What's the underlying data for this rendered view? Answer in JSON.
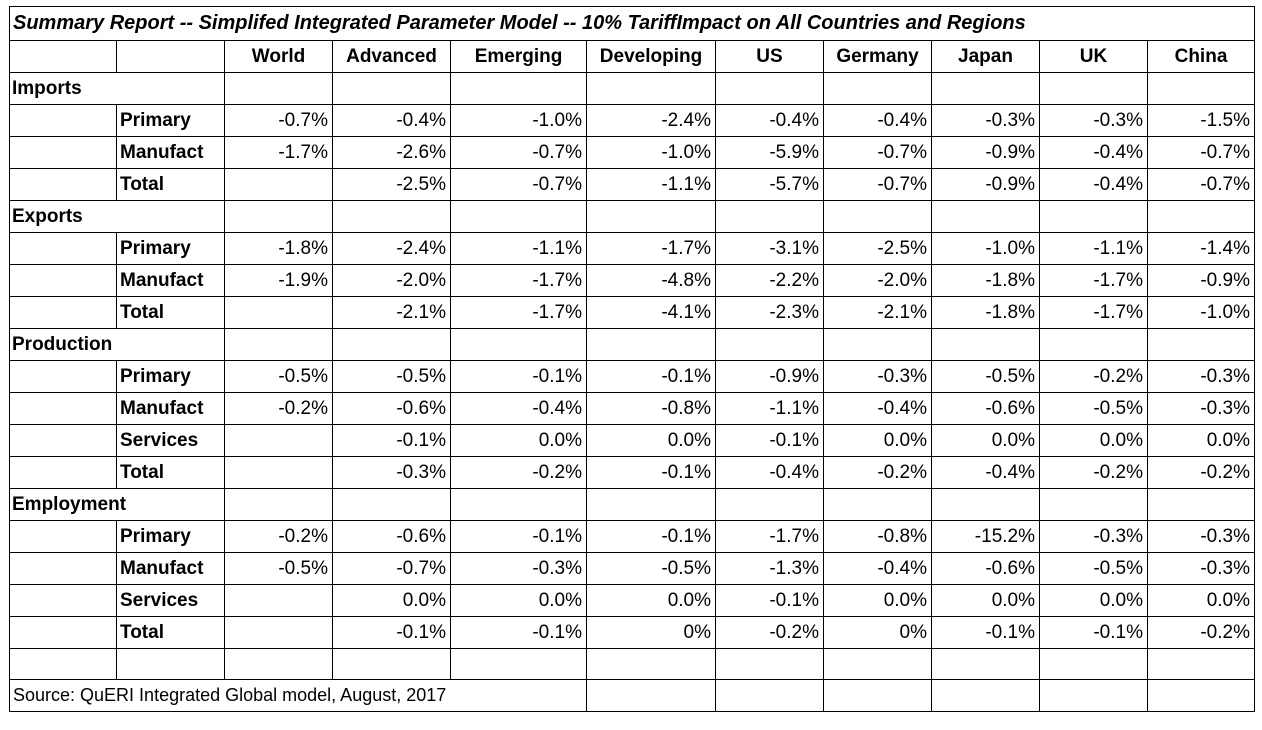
{
  "title": "Summary Report -- Simplifed Integrated Parameter Model -- 10% TariffImpact on All Countries and Regions",
  "columns": [
    "World",
    "Advanced",
    "Emerging",
    "Developing",
    "US",
    "Germany",
    "Japan",
    "UK",
    "China"
  ],
  "sections": [
    {
      "label": "Imports",
      "rows": [
        {
          "label": "Primary",
          "values": [
            "-0.7%",
            "-0.4%",
            "-1.0%",
            "-2.4%",
            "-0.4%",
            "-0.4%",
            "-0.3%",
            "-0.3%",
            "-1.5%"
          ]
        },
        {
          "label": "Manufact",
          "values": [
            "-1.7%",
            "-2.6%",
            "-0.7%",
            "-1.0%",
            "-5.9%",
            "-0.7%",
            "-0.9%",
            "-0.4%",
            "-0.7%"
          ]
        },
        {
          "label": "Total",
          "values": [
            "",
            "-2.5%",
            "-0.7%",
            "-1.1%",
            "-5.7%",
            "-0.7%",
            "-0.9%",
            "-0.4%",
            "-0.7%"
          ]
        }
      ]
    },
    {
      "label": "Exports",
      "rows": [
        {
          "label": "Primary",
          "values": [
            "-1.8%",
            "-2.4%",
            "-1.1%",
            "-1.7%",
            "-3.1%",
            "-2.5%",
            "-1.0%",
            "-1.1%",
            "-1.4%"
          ]
        },
        {
          "label": "Manufact",
          "values": [
            "-1.9%",
            "-2.0%",
            "-1.7%",
            "-4.8%",
            "-2.2%",
            "-2.0%",
            "-1.8%",
            "-1.7%",
            "-0.9%"
          ]
        },
        {
          "label": "Total",
          "values": [
            "",
            "-2.1%",
            "-1.7%",
            "-4.1%",
            "-2.3%",
            "-2.1%",
            "-1.8%",
            "-1.7%",
            "-1.0%"
          ]
        }
      ]
    },
    {
      "label": "Production",
      "rows": [
        {
          "label": "Primary",
          "values": [
            "-0.5%",
            "-0.5%",
            "-0.1%",
            "-0.1%",
            "-0.9%",
            "-0.3%",
            "-0.5%",
            "-0.2%",
            "-0.3%"
          ]
        },
        {
          "label": "Manufact",
          "values": [
            "-0.2%",
            "-0.6%",
            "-0.4%",
            "-0.8%",
            "-1.1%",
            "-0.4%",
            "-0.6%",
            "-0.5%",
            "-0.3%"
          ]
        },
        {
          "label": "Services",
          "values": [
            "",
            "-0.1%",
            "0.0%",
            "0.0%",
            "-0.1%",
            "0.0%",
            "0.0%",
            "0.0%",
            "0.0%"
          ]
        },
        {
          "label": "Total",
          "values": [
            "",
            "-0.3%",
            "-0.2%",
            "-0.1%",
            "-0.4%",
            "-0.2%",
            "-0.4%",
            "-0.2%",
            "-0.2%"
          ]
        }
      ]
    },
    {
      "label": "Employment",
      "rows": [
        {
          "label": "Primary",
          "values": [
            "-0.2%",
            "-0.6%",
            "-0.1%",
            "-0.1%",
            "-1.7%",
            "-0.8%",
            "-15.2%",
            "-0.3%",
            "-0.3%"
          ]
        },
        {
          "label": "Manufact",
          "values": [
            "-0.5%",
            "-0.7%",
            "-0.3%",
            "-0.5%",
            "-1.3%",
            "-0.4%",
            "-0.6%",
            "-0.5%",
            "-0.3%"
          ]
        },
        {
          "label": "Services",
          "values": [
            "",
            "0.0%",
            "0.0%",
            "0.0%",
            "-0.1%",
            "0.0%",
            "0.0%",
            "0.0%",
            "0.0%"
          ]
        },
        {
          "label": "Total",
          "values": [
            "",
            "-0.1%",
            "-0.1%",
            "0%",
            "-0.2%",
            "0%",
            "-0.1%",
            "-0.1%",
            "-0.2%"
          ]
        }
      ]
    }
  ],
  "source": "Source: QuERI Integrated Global model, August, 2017"
}
